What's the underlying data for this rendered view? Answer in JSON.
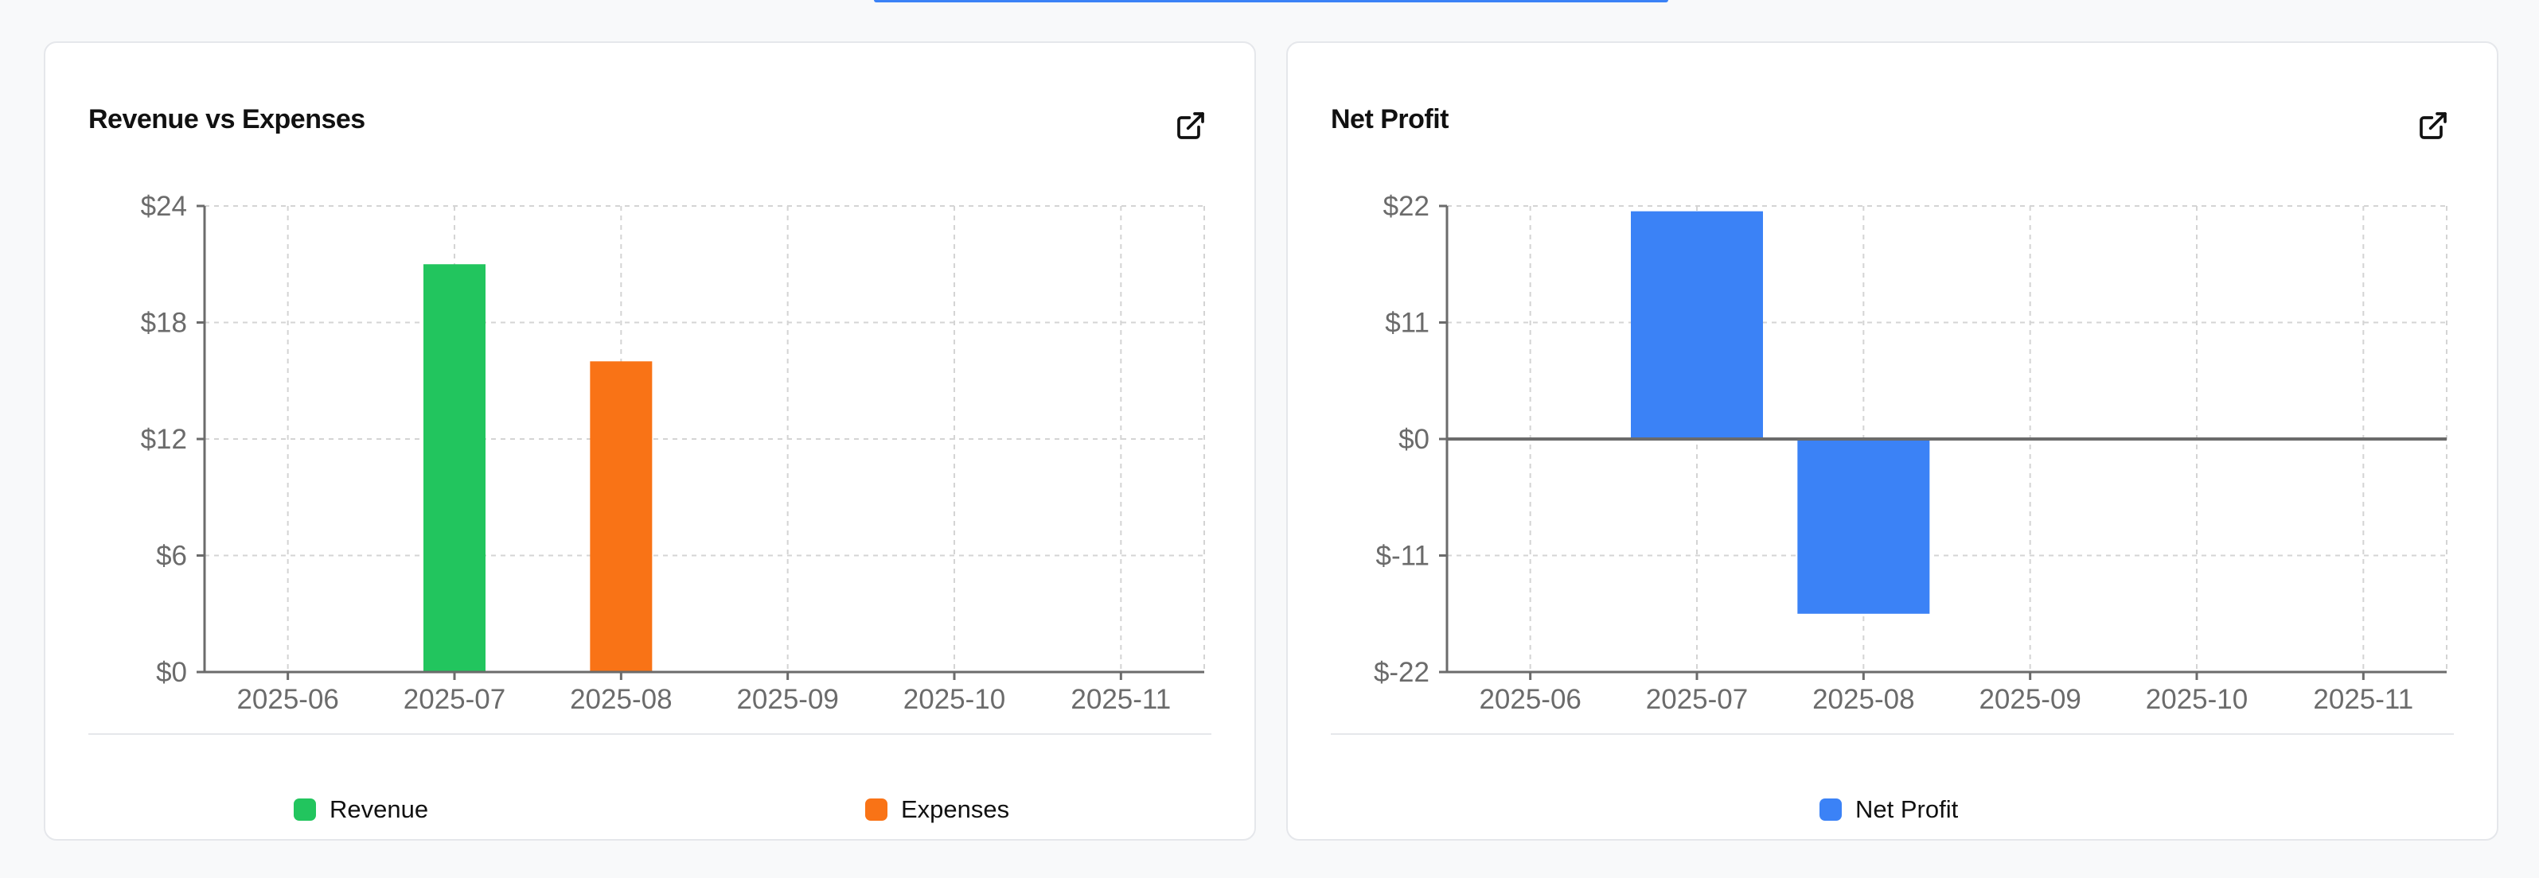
{
  "colors": {
    "revenue": "#22c55e",
    "expenses": "#f97316",
    "net_profit": "#3b82f6",
    "grid": "#d4d4d4",
    "axis": "#6b6b6b"
  },
  "cards": [
    {
      "title": "Revenue vs Expenses",
      "expand_icon": "external-link-icon",
      "legend": [
        {
          "label": "Revenue",
          "color": "#22c55e"
        },
        {
          "label": "Expenses",
          "color": "#f97316"
        }
      ]
    },
    {
      "title": "Net Profit",
      "expand_icon": "external-link-icon",
      "legend": [
        {
          "label": "Net Profit",
          "color": "#3b82f6"
        }
      ]
    }
  ],
  "chart_data": [
    {
      "type": "bar",
      "title": "Revenue vs Expenses",
      "categories": [
        "2025-06",
        "2025-07",
        "2025-08",
        "2025-09",
        "2025-10",
        "2025-11"
      ],
      "series": [
        {
          "name": "Revenue",
          "values": [
            0,
            21,
            0,
            0,
            0,
            0
          ]
        },
        {
          "name": "Expenses",
          "values": [
            0,
            0,
            16,
            0,
            0,
            0
          ]
        }
      ],
      "xlabel": "",
      "ylabel": "",
      "ylim": [
        0,
        24
      ],
      "yticks": [
        0,
        6,
        12,
        18,
        24
      ],
      "ytick_labels": [
        "$0",
        "$6",
        "$12",
        "$18",
        "$24"
      ],
      "grid": true,
      "legend_position": "bottom"
    },
    {
      "type": "bar",
      "title": "Net Profit",
      "categories": [
        "2025-06",
        "2025-07",
        "2025-08",
        "2025-09",
        "2025-10",
        "2025-11"
      ],
      "series": [
        {
          "name": "Net Profit",
          "values": [
            0,
            21.5,
            -16.5,
            0,
            0,
            0
          ]
        }
      ],
      "xlabel": "",
      "ylabel": "",
      "ylim": [
        -22,
        22
      ],
      "yticks": [
        -22,
        -11,
        0,
        11,
        22
      ],
      "ytick_labels": [
        "$-22",
        "$-11",
        "$0",
        "$11",
        "$22"
      ],
      "grid": true,
      "legend_position": "bottom"
    }
  ]
}
